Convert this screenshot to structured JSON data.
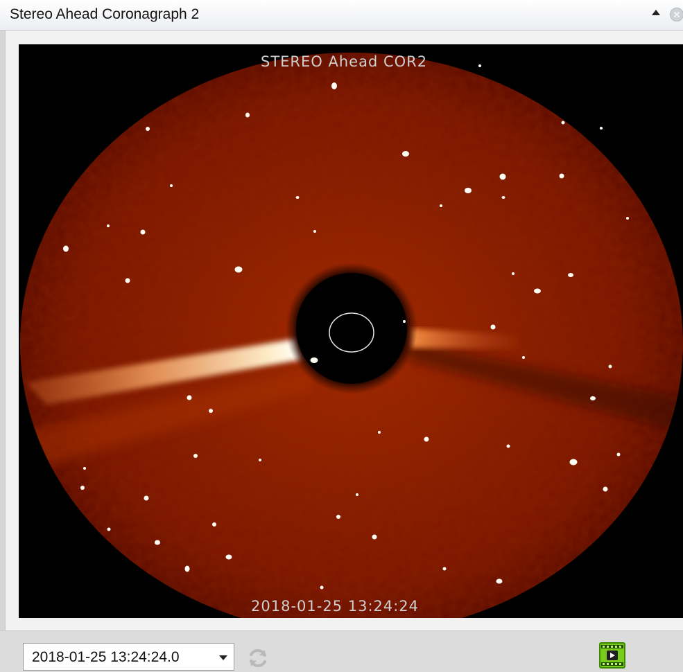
{
  "window": {
    "title": "Stereo Ahead Coronagraph 2"
  },
  "image": {
    "instrument_label": "STEREO Ahead COR2",
    "timestamp_label": "2018-01-25 13:24:24"
  },
  "toolbar": {
    "selected_time": "2018-01-25 13:24:24.0"
  },
  "icons": {
    "collapse": "collapse-icon",
    "close": "close-icon",
    "dropdown": "chevron-down-icon",
    "refresh": "refresh-icon",
    "movie": "movie-icon"
  },
  "colors": {
    "corona": "#8a1a00",
    "corona_bright": "#ffe6b0",
    "occulter": "#000000",
    "movie_icon": "#5fb800"
  }
}
